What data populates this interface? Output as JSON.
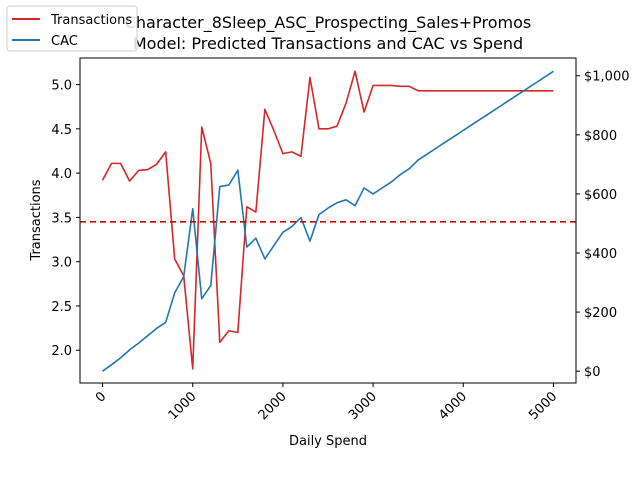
{
  "chart_data": {
    "type": "line",
    "title_line1": "Character_8Sleep_ASC_Prospecting_Sales+Promos",
    "title_line2": "Model: Predicted Transactions and CAC vs Spend",
    "xlabel": "Daily Spend",
    "ylabel_left": "Transactions",
    "ylabel_right": "",
    "xlim": [
      -250,
      5250
    ],
    "ylim_left": [
      1.63,
      5.3
    ],
    "ylim_right": [
      -40,
      1060
    ],
    "x_ticks": [
      0,
      1000,
      2000,
      3000,
      4000,
      5000
    ],
    "x_tick_labels": [
      "0",
      "1000",
      "2000",
      "3000",
      "4000",
      "5000"
    ],
    "y_left_ticks": [
      2.0,
      2.5,
      3.0,
      3.5,
      4.0,
      4.5,
      5.0
    ],
    "y_left_tick_labels": [
      "2.0",
      "2.5",
      "3.0",
      "3.5",
      "4.0",
      "4.5",
      "5.0"
    ],
    "y_right_ticks": [
      0,
      200,
      400,
      600,
      800,
      1000
    ],
    "y_right_tick_labels": [
      "$0",
      "$200",
      "$400",
      "$600",
      "$800",
      "$1,000"
    ],
    "legend_position": "top-left",
    "grid": false,
    "x": [
      0,
      100,
      200,
      300,
      400,
      500,
      600,
      700,
      800,
      900,
      1000,
      1100,
      1200,
      1300,
      1400,
      1500,
      1600,
      1700,
      1800,
      1900,
      2000,
      2100,
      2200,
      2300,
      2400,
      2500,
      2600,
      2700,
      2800,
      2900,
      3000,
      3100,
      3200,
      3300,
      3400,
      3500,
      3600,
      3700,
      3800,
      3900,
      4000,
      4100,
      4200,
      4300,
      4400,
      4500,
      4600,
      4700,
      4800,
      4900,
      5000
    ],
    "series": [
      {
        "name": "Transactions",
        "axis": "left",
        "color": "#d62728",
        "values": [
          3.92,
          4.11,
          4.11,
          3.91,
          4.03,
          4.04,
          4.1,
          4.24,
          3.03,
          2.84,
          1.79,
          4.52,
          4.11,
          2.09,
          2.22,
          2.2,
          3.62,
          3.56,
          4.72,
          4.48,
          4.22,
          4.24,
          4.19,
          5.08,
          4.5,
          4.5,
          4.53,
          4.79,
          5.15,
          4.69,
          4.99,
          4.99,
          4.99,
          4.98,
          4.98,
          4.93,
          4.93,
          4.93,
          4.93,
          4.93,
          4.93,
          4.93,
          4.93,
          4.93,
          4.93,
          4.93,
          4.93,
          4.93,
          4.93,
          4.93,
          4.93
        ]
      },
      {
        "name": "CAC",
        "axis": "right",
        "color": "#1f77b4",
        "values": [
          0,
          22,
          45,
          72,
          95,
          120,
          145,
          165,
          265,
          320,
          550,
          245,
          290,
          625,
          630,
          680,
          420,
          450,
          380,
          425,
          470,
          490,
          520,
          440,
          530,
          552,
          570,
          580,
          560,
          620,
          600,
          620,
          640,
          665,
          685,
          715,
          735,
          755,
          775,
          795,
          815,
          835,
          855,
          875,
          895,
          915,
          935,
          955,
          975,
          995,
          1015
        ]
      }
    ],
    "reference_line": {
      "axis": "left",
      "value": 3.45,
      "color": "#cc0000",
      "style": "dashed"
    }
  }
}
